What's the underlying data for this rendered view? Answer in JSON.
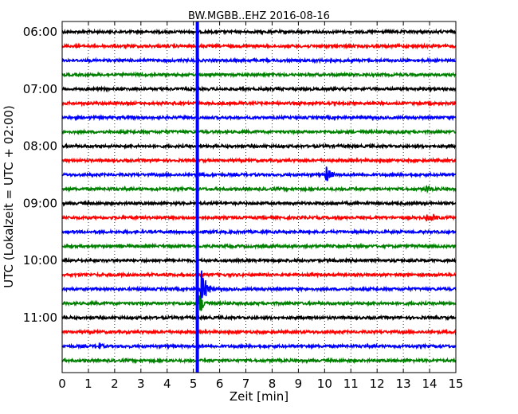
{
  "chart_data": {
    "type": "line",
    "title": "BW.MGBB..EHZ 2016-08-16",
    "xlabel": "Zeit  [min]",
    "ylabel": "UTC (Lokalzeit = UTC + 02:00)",
    "xlim": [
      0,
      15
    ],
    "xticks": [
      0,
      1,
      2,
      3,
      4,
      5,
      6,
      7,
      8,
      9,
      10,
      11,
      12,
      13,
      14,
      15
    ],
    "yticks": [
      "06:00",
      "07:00",
      "08:00",
      "09:00",
      "10:00",
      "11:00"
    ],
    "grid": true,
    "trace_colors": [
      "#000000",
      "#ff0000",
      "#0000ff",
      "#008000"
    ],
    "traces": [
      "06:00",
      "06:15",
      "06:30",
      "06:45",
      "07:00",
      "07:15",
      "07:30",
      "07:45",
      "08:00",
      "08:15",
      "08:30",
      "08:45",
      "09:00",
      "09:15",
      "09:30",
      "09:45",
      "10:00",
      "10:15",
      "10:30",
      "10:45",
      "11:00",
      "11:15",
      "11:30",
      "11:45"
    ],
    "events": [
      {
        "trace": "08:30",
        "x": 10.05,
        "amplitude": "medium"
      },
      {
        "trace": "08:45",
        "x": 13.85,
        "amplitude": "small"
      },
      {
        "trace": "09:15",
        "x": 13.9,
        "amplitude": "small"
      },
      {
        "trace": "09:15",
        "x": 14.15,
        "amplitude": "small"
      },
      {
        "trace": "10:30",
        "x": 5.3,
        "amplitude": "large"
      },
      {
        "trace": "10:45",
        "x": 5.25,
        "amplitude": "medium"
      },
      {
        "trace": "11:30",
        "x": 1.4,
        "amplitude": "small"
      }
    ],
    "vertical_marker": {
      "x": 5.15,
      "color": "#0000ff"
    }
  }
}
